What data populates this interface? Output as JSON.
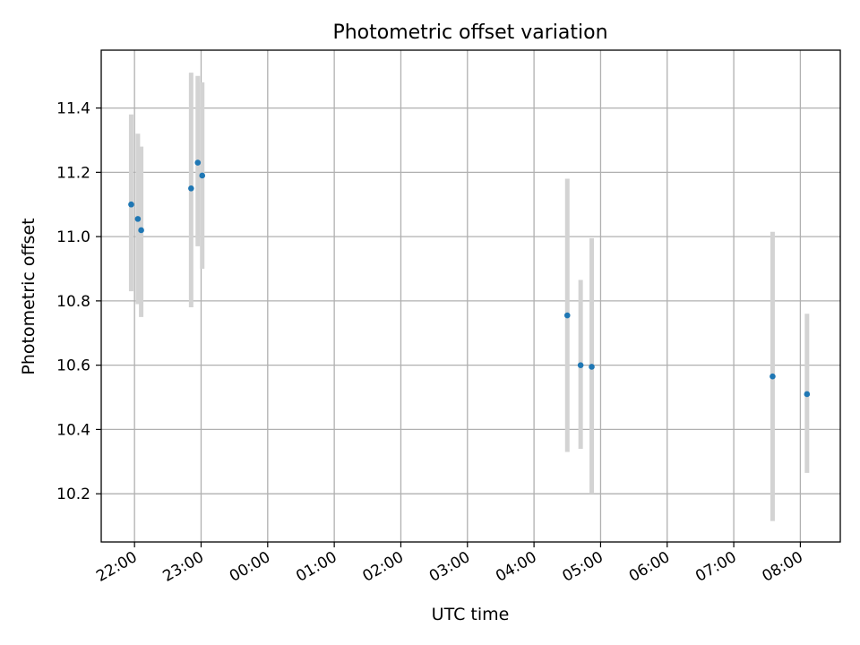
{
  "chart_data": {
    "type": "scatter",
    "title": "Photometric offset variation",
    "xlabel": "UTC time",
    "ylabel": "Photometric offset",
    "grid": true,
    "x_tick_labels": [
      "22:00",
      "23:00",
      "00:00",
      "01:00",
      "02:00",
      "03:00",
      "04:00",
      "05:00",
      "06:00",
      "07:00",
      "08:00"
    ],
    "y_tick_labels": [
      "10.2",
      "10.4",
      "10.6",
      "10.8",
      "11.0",
      "11.2",
      "11.4"
    ],
    "y_ticks": [
      10.2,
      10.4,
      10.6,
      10.8,
      11.0,
      11.2,
      11.4
    ],
    "ylim": [
      10.05,
      11.58
    ],
    "xlim": [
      "21:30",
      "08:36"
    ],
    "colors": {
      "point": "#1f77b4",
      "errorbar": "#d3d3d3",
      "grid": "#b0b0b0"
    },
    "points": [
      {
        "x": "21:57",
        "y": 11.1,
        "err_low": 10.83,
        "err_high": 11.38
      },
      {
        "x": "22:03",
        "y": 11.055,
        "err_low": 10.79,
        "err_high": 11.32
      },
      {
        "x": "22:06",
        "y": 11.02,
        "err_low": 10.75,
        "err_high": 11.28
      },
      {
        "x": "22:51",
        "y": 11.15,
        "err_low": 10.78,
        "err_high": 11.51
      },
      {
        "x": "22:57",
        "y": 11.23,
        "err_low": 10.97,
        "err_high": 11.5
      },
      {
        "x": "23:01",
        "y": 11.19,
        "err_low": 10.9,
        "err_high": 11.48
      },
      {
        "x": "04:30",
        "y": 10.755,
        "err_low": 10.33,
        "err_high": 11.18
      },
      {
        "x": "04:42",
        "y": 10.6,
        "err_low": 10.34,
        "err_high": 10.865
      },
      {
        "x": "04:52",
        "y": 10.595,
        "err_low": 10.2,
        "err_high": 10.995
      },
      {
        "x": "07:35",
        "y": 10.565,
        "err_low": 10.115,
        "err_high": 11.015
      },
      {
        "x": "08:06",
        "y": 10.51,
        "err_low": 10.265,
        "err_high": 10.76
      }
    ]
  }
}
